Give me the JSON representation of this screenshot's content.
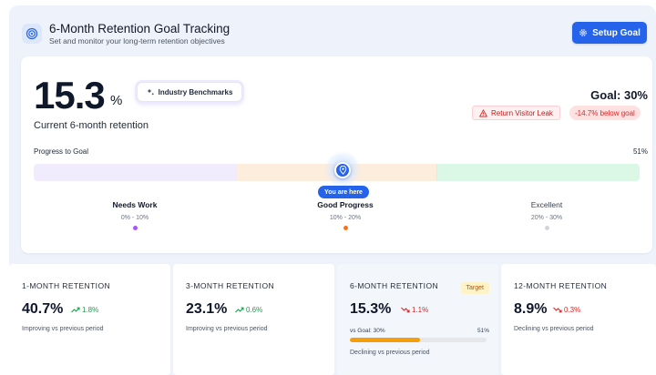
{
  "header": {
    "title": "6-Month Retention Goal Tracking",
    "subtitle": "Set and monitor your long-term retention objectives",
    "setup_label": "Setup Goal",
    "logo_icon": "target-icon",
    "accent": "#2563eb"
  },
  "summary": {
    "value": "15.3",
    "unit": "%",
    "label": "Current 6-month retention",
    "benchmarks_label": "Industry Benchmarks",
    "goal_label": "Goal: 30%",
    "leak_label": "Return Visitor Leak",
    "below_label": "-14.7% below goal"
  },
  "progress": {
    "label": "Progress to Goal",
    "percent_label": "51%",
    "here_label": "You are here",
    "marker_position": 0.51,
    "zones": [
      {
        "name": "Needs Work",
        "range": "0% - 10%",
        "dot_color": "#a855f7",
        "bar_color": "#f1ecfd"
      },
      {
        "name": "Good Progress",
        "range": "10% - 20%",
        "dot_color": "#f97316",
        "bar_color": "#fdeddd"
      },
      {
        "name": "Excellent",
        "range": "20% - 30%",
        "dot_color": "#d1d5db",
        "bar_color": "#dbf7e5"
      }
    ]
  },
  "cards": [
    {
      "title": "1-MONTH RETENTION",
      "value": "40.7%",
      "delta": "1.8%",
      "direction": "up",
      "note": "Improving vs previous period"
    },
    {
      "title": "3-MONTH RETENTION",
      "value": "23.1%",
      "delta": "0.6%",
      "direction": "up",
      "note": "Improving vs previous period"
    },
    {
      "title": "6-MONTH RETENTION",
      "value": "15.3%",
      "delta": "1.1%",
      "direction": "down",
      "badge": "Target",
      "vs_goal_label": "vs Goal: 30%",
      "vs_goal_percent": "51%",
      "vs_goal_fraction": 0.51,
      "note": "Declining vs previous period"
    },
    {
      "title": "12-MONTH RETENTION",
      "value": "8.9%",
      "delta": "0.3%",
      "direction": "down",
      "note": "Declining vs previous period"
    }
  ]
}
